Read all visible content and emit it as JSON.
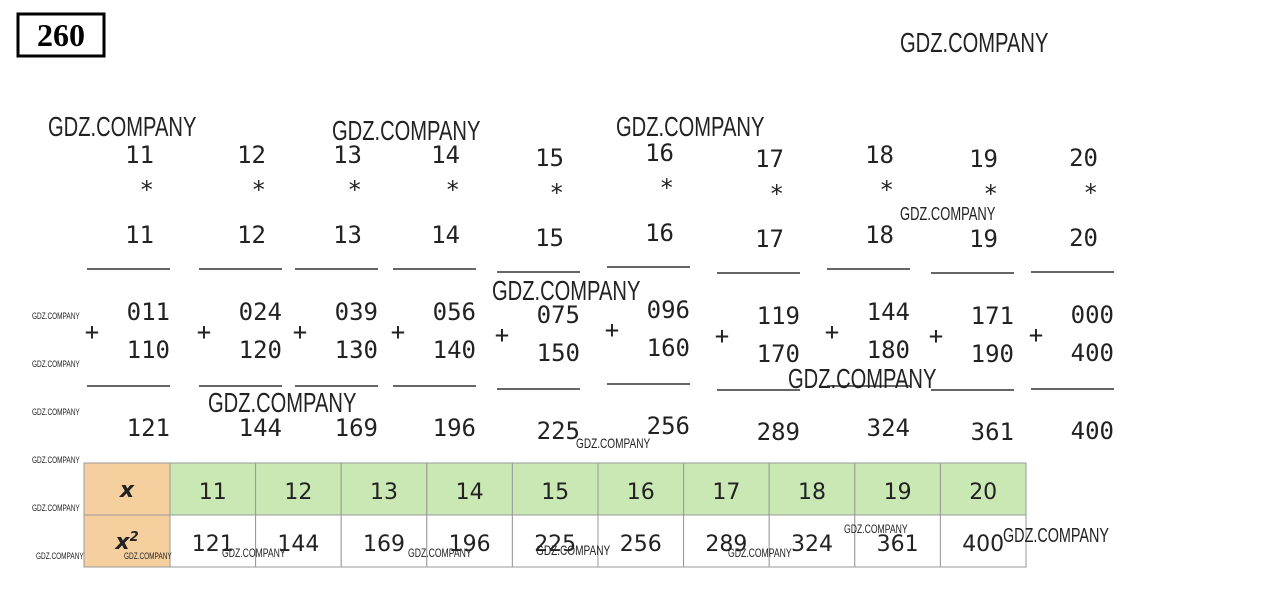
{
  "problem_number": "260",
  "columns": [
    {
      "a": "11",
      "op": "*",
      "b": "11",
      "plus": "+",
      "partial1": "011",
      "partial2": "110",
      "result": "121"
    },
    {
      "a": "12",
      "op": "*",
      "b": "12",
      "plus": "+",
      "partial1": "024",
      "partial2": "120",
      "result": "144"
    },
    {
      "a": "13",
      "op": "*",
      "b": "13",
      "plus": "+",
      "partial1": "039",
      "partial2": "130",
      "result": "169"
    },
    {
      "a": "14",
      "op": "*",
      "b": "14",
      "plus": "+",
      "partial1": "056",
      "partial2": "140",
      "result": "196"
    },
    {
      "a": "15",
      "op": "*",
      "b": "15",
      "plus": "+",
      "partial1": "075",
      "partial2": "150",
      "result": "225"
    },
    {
      "a": "16",
      "op": "*",
      "b": "16",
      "plus": "+",
      "partial1": "096",
      "partial2": "160",
      "result": "256"
    },
    {
      "a": "17",
      "op": "*",
      "b": "17",
      "plus": "+",
      "partial1": "119",
      "partial2": "170",
      "result": "289"
    },
    {
      "a": "18",
      "op": "*",
      "b": "18",
      "plus": "+",
      "partial1": "144",
      "partial2": "180",
      "result": "324"
    },
    {
      "a": "19",
      "op": "*",
      "b": "19",
      "plus": "+",
      "partial1": "171",
      "partial2": "190",
      "result": "361"
    },
    {
      "a": "20",
      "op": "*",
      "b": "20",
      "plus": "+",
      "partial1": "000",
      "partial2": "400",
      "result": "400"
    }
  ],
  "table": {
    "row_x": {
      "label": "x",
      "cells": [
        "11",
        "12",
        "13",
        "14",
        "15",
        "16",
        "17",
        "18",
        "19",
        "20"
      ]
    },
    "row_x2": {
      "label": "x",
      "exponent": "2",
      "cells": [
        "121",
        "144",
        "169",
        "196",
        "225",
        "256",
        "289",
        "324",
        "361",
        "400"
      ]
    }
  },
  "watermarks": [
    "GDZ.COMPANY",
    "GDZ.COMPANY",
    "GDZ.COMPANY",
    "GDZ.COMPANY",
    "GDZ.COMPANY",
    "GDZ.COMPANY",
    "GDZ.COMPANY",
    "GDZ.COMPANY",
    "GDZ.COMPANY",
    "GDZ.COMPANY",
    "GDZ.COMPANY",
    "GDZ.COMPANY",
    "GDZ.COMPANY",
    "GDZ.COMPANY",
    "GDZ.COMPANY",
    "GDZ.COMPANY",
    "GDZ.COMPANY",
    "GDZ.COMPANY",
    "GDZ.COMPANY",
    "GDZ.COMPANY",
    "GDZ.COMPANY",
    "GDZ.COMPANY",
    "GDZ.COMPANY",
    "GDZ.COMPANY"
  ]
}
